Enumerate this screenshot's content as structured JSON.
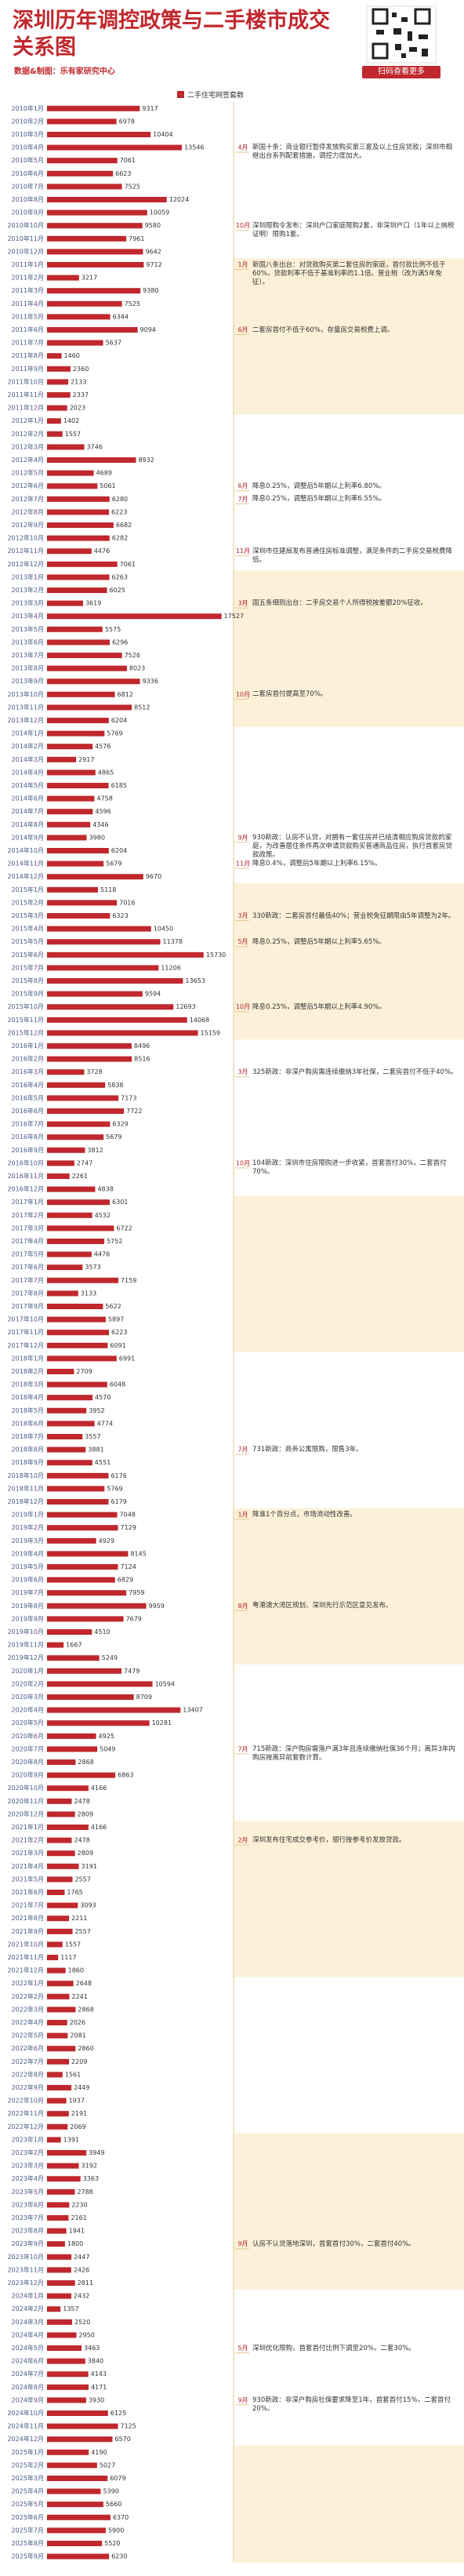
{
  "chart_data": {
    "type": "bar",
    "title": "深圳历年调控政策与二手楼市成交关系图",
    "credit": "数据&制图：乐有家研究中心",
    "qr_caption": "扫码查看更多",
    "series_name": "二手住宅网签套数",
    "color": "#c0282d",
    "xlim": [
      0,
      18500
    ],
    "categories": [
      "2010年1月",
      "2010年2月",
      "2010年3月",
      "2010年4月",
      "2010年5月",
      "2010年6月",
      "2010年7月",
      "2010年8月",
      "2010年9月",
      "2010年10月",
      "2010年11月",
      "2010年12月",
      "2011年1月",
      "2011年2月",
      "2011年3月",
      "2011年4月",
      "2011年5月",
      "2011年6月",
      "2011年7月",
      "2011年8月",
      "2011年9月",
      "2011年10月",
      "2011年11月",
      "2011年12月",
      "2012年1月",
      "2012年2月",
      "2012年3月",
      "2012年4月",
      "2012年5月",
      "2012年6月",
      "2012年7月",
      "2012年8月",
      "2012年9月",
      "2012年10月",
      "2012年11月",
      "2012年12月",
      "2013年1月",
      "2013年2月",
      "2013年3月",
      "2013年4月",
      "2013年5月",
      "2013年6月",
      "2013年7月",
      "2013年8月",
      "2013年9月",
      "2013年10月",
      "2013年11月",
      "2013年12月",
      "2014年1月",
      "2014年2月",
      "2014年3月",
      "2014年4月",
      "2014年5月",
      "2014年6月",
      "2014年7月",
      "2014年8月",
      "2014年9月",
      "2014年10月",
      "2014年11月",
      "2014年12月",
      "2015年1月",
      "2015年2月",
      "2015年3月",
      "2015年4月",
      "2015年5月",
      "2015年6月",
      "2015年7月",
      "2015年8月",
      "2015年9月",
      "2015年10月",
      "2015年11月",
      "2015年12月",
      "2016年1月",
      "2016年2月",
      "2016年3月",
      "2016年4月",
      "2016年5月",
      "2016年6月",
      "2016年7月",
      "2016年8月",
      "2016年9月",
      "2016年10月",
      "2016年11月",
      "2016年12月",
      "2017年1月",
      "2017年2月",
      "2017年3月",
      "2017年4月",
      "2017年5月",
      "2017年6月",
      "2017年7月",
      "2017年8月",
      "2017年9月",
      "2017年10月",
      "2017年11月",
      "2017年12月",
      "2018年1月",
      "2018年2月",
      "2018年3月",
      "2018年4月",
      "2018年5月",
      "2018年6月",
      "2018年7月",
      "2018年8月",
      "2018年9月",
      "2018年10月",
      "2018年11月",
      "2018年12月",
      "2019年1月",
      "2019年2月",
      "2019年3月",
      "2019年4月",
      "2019年5月",
      "2019年6月",
      "2019年7月",
      "2019年8月",
      "2019年9月",
      "2019年10月",
      "2019年11月",
      "2019年12月",
      "2020年1月",
      "2020年2月",
      "2020年3月",
      "2020年4月",
      "2020年5月",
      "2020年6月",
      "2020年7月",
      "2020年8月",
      "2020年9月",
      "2020年10月",
      "2020年11月",
      "2020年12月",
      "2021年1月",
      "2021年2月",
      "2021年3月",
      "2021年4月",
      "2021年5月",
      "2021年6月",
      "2021年7月",
      "2021年8月",
      "2021年9月",
      "2021年10月",
      "2021年11月",
      "2021年12月",
      "2022年1月",
      "2022年2月",
      "2022年3月",
      "2022年4月",
      "2022年5月",
      "2022年6月",
      "2022年7月",
      "2022年8月",
      "2022年9月",
      "2022年10月",
      "2022年11月",
      "2022年12月",
      "2023年1月",
      "2023年2月",
      "2023年3月",
      "2023年4月",
      "2023年5月",
      "2023年6月",
      "2023年7月",
      "2023年8月",
      "2023年9月",
      "2023年10月",
      "2023年11月",
      "2023年12月",
      "2024年1月",
      "2024年2月",
      "2024年3月",
      "2024年4月",
      "2024年5月",
      "2024年6月",
      "2024年7月",
      "2024年8月",
      "2024年9月",
      "2024年10月",
      "2024年11月",
      "2024年12月",
      "2025年1月",
      "2025年2月",
      "2025年3月",
      "2025年4月",
      "2025年5月",
      "2025年6月",
      "2025年7月",
      "2025年8月",
      "2025年9月"
    ],
    "values": [
      9317,
      6978,
      10404,
      13546,
      7061,
      6623,
      7525,
      12024,
      10059,
      9580,
      7961,
      9642,
      9712,
      3217,
      9380,
      7525,
      6344,
      9094,
      5637,
      1460,
      2360,
      2133,
      2337,
      2023,
      1402,
      1557,
      3746,
      8932,
      4689,
      5061,
      6280,
      6223,
      6682,
      6282,
      4476,
      7061,
      6263,
      6025,
      3619,
      17527,
      5575,
      6296,
      7526,
      8023,
      9336,
      6812,
      8512,
      6204,
      5769,
      4576,
      2917,
      4865,
      6185,
      4758,
      4596,
      4346,
      3980,
      6204,
      5679,
      9670,
      5118,
      7016,
      6323,
      10450,
      11378,
      15730,
      11206,
      13653,
      9594,
      12693,
      14068,
      15159,
      8496,
      8516,
      3728,
      5838,
      7173,
      7722,
      6329,
      5679,
      3812,
      2747,
      2261,
      4838,
      6301,
      4532,
      6722,
      5752,
      4476,
      3573,
      7159,
      3133,
      5622,
      5897,
      6223,
      6091,
      6991,
      2709,
      6048,
      4570,
      3952,
      4774,
      3557,
      3881,
      4551,
      6176,
      5769,
      6179,
      7048,
      7129,
      4929,
      8145,
      7124,
      6829,
      7959,
      9959,
      7679,
      4510,
      1667,
      5249,
      7479,
      10594,
      8709,
      13407,
      10281,
      4925,
      5049,
      2868,
      6863,
      4166,
      2478,
      2809,
      4166,
      2478,
      2809,
      3191,
      2557,
      1765,
      3093,
      2211,
      2557,
      1557,
      1117,
      1860,
      2648,
      2241,
      2868,
      2026,
      2081,
      2860,
      2209,
      1561,
      2449,
      1937,
      2191,
      2069,
      1391,
      3949,
      3192,
      3363,
      2788,
      2230,
      2161,
      1941,
      1800,
      2447,
      2426,
      2811,
      2432,
      1357,
      2520,
      2950,
      3463,
      3840,
      4143,
      4171,
      3930,
      6125,
      7125,
      6570,
      4190,
      5027,
      6079,
      5390,
      5660,
      6370,
      5900,
      5520,
      6230
    ],
    "annotations": [
      {
        "month": "4月",
        "text": "新国十条：商业银行暂停发放购买第三套及以上住房贷款；深圳市相继出台系列配套措施，调控力度加大。"
      },
      {
        "month": "10月",
        "text": "深圳限购令发布：深圳户口家庭限购2套，非深圳户口（1年以上纳税证明）限购1套。"
      },
      {
        "month": "1月",
        "text": "新国八条出台：对贷款购买第二套住房的家庭，首付款比例不低于60%，贷款利率不低于基准利率的1.1倍。营业税（改为满5年免征）。"
      },
      {
        "month": "6月",
        "text": "二套房首付不低于60%，存量房交易税费上调。"
      },
      {
        "month": "6月",
        "text": "降息0.25%，调整后5年期以上利率6.80%。"
      },
      {
        "month": "7月",
        "text": "降息0.25%，调整后5年期以上利率6.55%。"
      },
      {
        "month": "11月",
        "text": "深圳市住建局发布普通住房标准调整，满足条件的二手房交易税费降低。"
      },
      {
        "month": "3月",
        "text": "国五条细则出台：二手房交易个人所得税按差额20%征收。"
      },
      {
        "month": "10月",
        "text": "二套房首付提高至70%。"
      },
      {
        "month": "9月",
        "text": "930新政：认房不认贷，对拥有一套住房并已结清相应购房贷款的家庭，为改善居住条件再次申请贷款购买普通商品住房，执行首套房贷款政策。"
      },
      {
        "month": "11月",
        "text": "降息0.4%，调整后5年期以上利率6.15%。"
      },
      {
        "month": "3月",
        "text": "330新政：二套房首付最低40%；营业税免征期限由5年调整为2年。"
      },
      {
        "month": "5月",
        "text": "降息0.25%，调整后5年期以上利率5.65%。"
      },
      {
        "month": "10月",
        "text": "降息0.25%，调整后5年期以上利率4.90%。"
      },
      {
        "month": "3月",
        "text": "325新政：非深户购房需连续缴纳3年社保，二套房首付不低于40%。"
      },
      {
        "month": "10月",
        "text": "104新政：深圳市住房限购进一步收紧，首套首付30%，二套首付70%。"
      },
      {
        "month": "7月",
        "text": "731新政：商务公寓限购，限售3年。"
      },
      {
        "month": "1月",
        "text": "降准1个百分点，市场流动性改善。"
      },
      {
        "month": "8月",
        "text": "粤港澳大湾区规划、深圳先行示范区意见发布。"
      },
      {
        "month": "7月",
        "text": "715新政：深户购房需落户满3年且连续缴纳社保36个月；离异3年内购房按离异前套数计算。"
      },
      {
        "month": "2月",
        "text": "深圳发布住宅成交参考价，银行按参考价发放贷款。"
      },
      {
        "month": "9月",
        "text": "认房不认贷落地深圳，首套首付30%，二套首付40%。"
      },
      {
        "month": "5月",
        "text": "深圳优化限购，首套首付比例下调至20%，二套30%。"
      },
      {
        "month": "9月",
        "text": "930新政：非深户购房社保要求降至1年，首套首付15%，二套首付20%。"
      }
    ]
  }
}
